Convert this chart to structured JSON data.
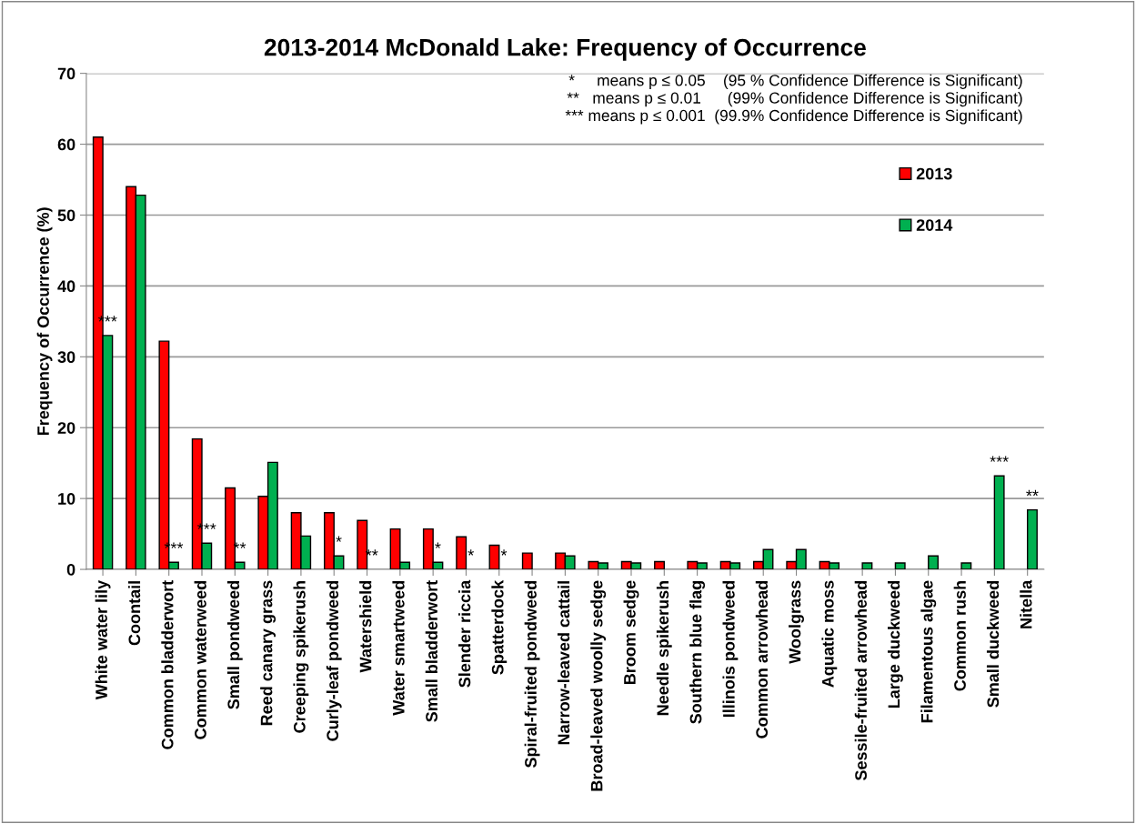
{
  "chart_data": {
    "type": "bar",
    "title": "2013-2014 McDonald Lake: Frequency of Occurrence",
    "ylabel": "Frequency of Occurrence (%)",
    "categories": [
      "White water lily",
      "Coontail",
      "Common bladderwort",
      "Common waterweed",
      "Small pondweed",
      "Reed canary grass",
      "Creeping spikerush",
      "Curly-leaf pondweed",
      "Watershield",
      "Water smartweed",
      "Small bladderwort",
      "Slender riccia",
      "Spatterdock",
      "Spiral-fruited pondweed",
      "Narrow-leaved cattail",
      "Broad-leaved woolly sedge",
      "Broom sedge",
      "Needle spikerush",
      "Southern blue flag",
      "Illinois pondweed",
      "Common arrowhead",
      "Woolgrass",
      "Aquatic moss",
      "Sessile-fruited arrowhead",
      "Large duckweed",
      "Filamentous algae",
      "Common rush",
      "Small duckweed",
      "Nitella"
    ],
    "series": [
      {
        "name": "2013",
        "color": "#ff0000",
        "values": [
          61,
          54,
          32.2,
          18.4,
          11.5,
          10.3,
          8.0,
          8.0,
          6.9,
          5.7,
          5.7,
          4.6,
          3.4,
          2.3,
          2.3,
          1.1,
          1.1,
          1.1,
          1.1,
          1.1,
          1.1,
          1.1,
          1.1,
          null,
          null,
          null,
          null,
          null,
          null
        ]
      },
      {
        "name": "2014",
        "color": "#00b050",
        "values": [
          33,
          52.8,
          1.0,
          3.7,
          1.0,
          15.1,
          4.7,
          1.9,
          null,
          1.0,
          1.0,
          null,
          null,
          null,
          1.9,
          0.9,
          0.9,
          null,
          0.9,
          0.9,
          2.8,
          2.8,
          0.9,
          0.9,
          0.9,
          1.9,
          0.9,
          13.2,
          8.4
        ]
      }
    ],
    "ylim": [
      0,
      70
    ],
    "yticks": [
      0,
      10,
      20,
      30,
      40,
      50,
      60,
      70
    ],
    "grid": "y",
    "legend": "top right",
    "annotations": [
      "*     means p ≤ 0.05    (95 % Confidence Difference is Significant)",
      "**   means p ≤ 0.01      (99% Confidence Difference is Significant)",
      "*** means p ≤ 0.001  (99.9% Confidence Difference is Significant)",
      {
        "text": "***",
        "x": "White water lily",
        "y": 33
      },
      {
        "text": "***",
        "x": "Common bladderwort",
        "y": 1.0
      },
      {
        "text": "***",
        "x": "Common waterweed",
        "y": 3.7
      },
      {
        "text": "**",
        "x": "Small pondweed",
        "y": 1.0
      },
      {
        "text": "*",
        "x": "Curly-leaf pondweed",
        "y": 1.9
      },
      {
        "text": "**",
        "x": "Watershield",
        "y": 0
      },
      {
        "text": "*",
        "x": "Small bladderwort",
        "y": 1.0
      },
      {
        "text": "*",
        "x": "Slender riccia",
        "y": 0
      },
      {
        "text": "*",
        "x": "Spatterdock",
        "y": 0
      },
      {
        "text": "***",
        "x": "Small duckweed",
        "y": 13.2
      },
      {
        "text": "**",
        "x": "Nitella",
        "y": 8.4
      }
    ]
  }
}
